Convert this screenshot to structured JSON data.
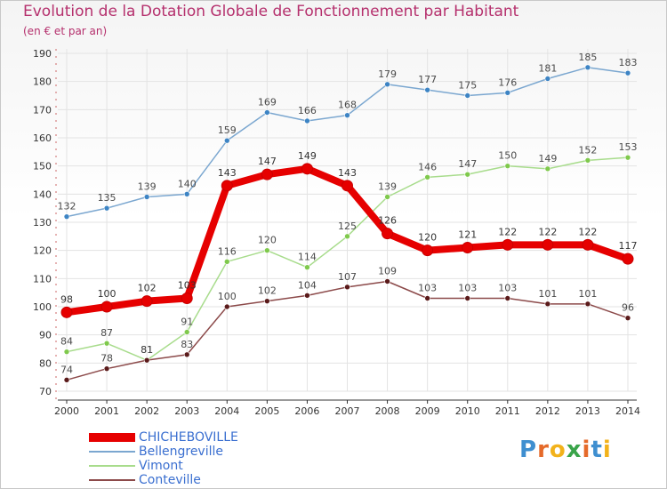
{
  "header": {
    "title": "Evolution de la Dotation Globale de Fonctionnement par Habitant",
    "subtitle": "(en € et par an)"
  },
  "brand": {
    "logo_text": "Proxiti"
  },
  "chart_data": {
    "type": "line",
    "title": "Evolution de la Dotation Globale de Fonctionnement par Habitant",
    "subtitle": "(en € et par an)",
    "xlabel": "",
    "ylabel": "",
    "x": [
      "2000",
      "2001",
      "2002",
      "2003",
      "2004",
      "2005",
      "2006",
      "2007",
      "2008",
      "2009",
      "2010",
      "2011",
      "2012",
      "2013",
      "2014"
    ],
    "ylim": [
      70,
      190
    ],
    "yticks": [
      "70",
      "80",
      "90",
      "100",
      "110",
      "120",
      "130",
      "140",
      "150",
      "160",
      "170",
      "180",
      "190"
    ],
    "grid": true,
    "legend_position": "bottom-left",
    "series": [
      {
        "name": "Bellengreville",
        "color": "#7ba7d0",
        "marker_color": "#3d84c4",
        "label_color": "#4a4a4a",
        "thick": false,
        "values": [
          132,
          135,
          139,
          140,
          159,
          169,
          166,
          168,
          179,
          177,
          175,
          176,
          181,
          185,
          183
        ],
        "labels": [
          "132",
          "135",
          "139",
          "140",
          "159",
          "169",
          "166",
          "168",
          "179",
          "177",
          "175",
          "176",
          "181",
          "185",
          "183"
        ]
      },
      {
        "name": "Vimont",
        "color": "#a8dc8c",
        "marker_color": "#7fc94c",
        "label_color": "#4a4a4a",
        "thick": false,
        "values": [
          84,
          87,
          81,
          91,
          116,
          120,
          114,
          125,
          139,
          146,
          147,
          150,
          149,
          152,
          153
        ],
        "labels": [
          "84",
          "87",
          "81",
          "91",
          "116",
          "120",
          "114",
          "125",
          "139",
          "146",
          "147",
          "150",
          "149",
          "152",
          "153"
        ]
      },
      {
        "name": "Conteville",
        "color": "#8c4a4a",
        "marker_color": "#5a1a1a",
        "label_color": "#4a4a4a",
        "thick": false,
        "values": [
          74,
          78,
          81,
          83,
          100,
          102,
          104,
          107,
          109,
          103,
          103,
          103,
          101,
          101,
          96
        ],
        "labels": [
          "74",
          "78",
          "81",
          "83",
          "100",
          "102",
          "104",
          "107",
          "109",
          "103",
          "103",
          "103",
          "101",
          "101",
          "96"
        ]
      },
      {
        "name": "CHICHEBOVILLE",
        "color": "#e60000",
        "marker_color": "#e60000",
        "label_color": "#333333",
        "thick": true,
        "values": [
          98,
          100,
          102,
          103,
          143,
          147,
          149,
          143,
          126,
          120,
          121,
          122,
          122,
          122,
          117
        ],
        "labels": [
          "98",
          "100",
          "102",
          "103",
          "143",
          "147",
          "149",
          "143",
          "126",
          "120",
          "121",
          "122",
          "122",
          "122",
          "117"
        ]
      }
    ],
    "legend": [
      {
        "name": "CHICHEBOVILLE",
        "color": "#e60000",
        "text_color": "#3a6fd0"
      },
      {
        "name": "Bellengreville",
        "color": "#7ba7d0",
        "text_color": "#3a6fd0"
      },
      {
        "name": "Vimont",
        "color": "#a8dc8c",
        "text_color": "#3a6fd0"
      },
      {
        "name": "Conteville",
        "color": "#8c4a4a",
        "text_color": "#3a6fd0"
      }
    ]
  }
}
